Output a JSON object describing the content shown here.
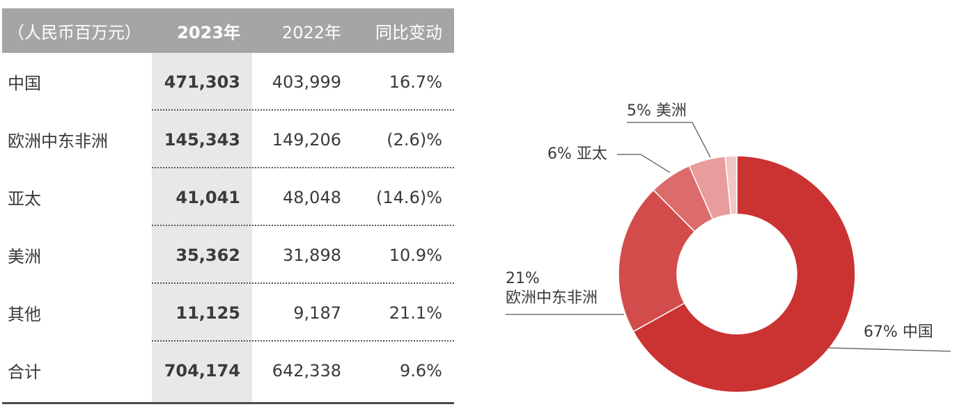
{
  "table": {
    "headers": [
      "（人民币百万元）",
      "2023年",
      "2022年",
      "同比变动"
    ],
    "rows": [
      [
        "中国",
        "471,303",
        "403,999",
        "16.7%"
      ],
      [
        "欧洲中东非洲",
        "145,343",
        "149,206",
        "(2.6)%"
      ],
      [
        "亚太",
        "41,041",
        "48,048",
        "(14.6)%"
      ],
      [
        "美洲",
        "35,362",
        "31,898",
        "10.9%"
      ],
      [
        "其他",
        "11,125",
        "9,187",
        "21.1%"
      ],
      [
        "合计",
        "704,174",
        "642,338",
        "9.6%"
      ]
    ]
  },
  "chart_data": {
    "type": "pie",
    "categories": [
      "中国",
      "欧洲中东非洲",
      "亚太",
      "美洲",
      "其他"
    ],
    "values": [
      471303,
      145343,
      41041,
      35362,
      11125
    ],
    "labels": [
      {
        "pct": "67%",
        "name": "中国"
      },
      {
        "pct": "21%",
        "name": "欧洲中东非洲"
      },
      {
        "pct": "6%",
        "name": "亚太"
      },
      {
        "pct": "5%",
        "name": "美洲"
      }
    ],
    "colors": [
      "#cb3232",
      "#d24c4c",
      "#dc6b6b",
      "#e89c9c",
      "#f0c8c8"
    ],
    "donut": true
  }
}
